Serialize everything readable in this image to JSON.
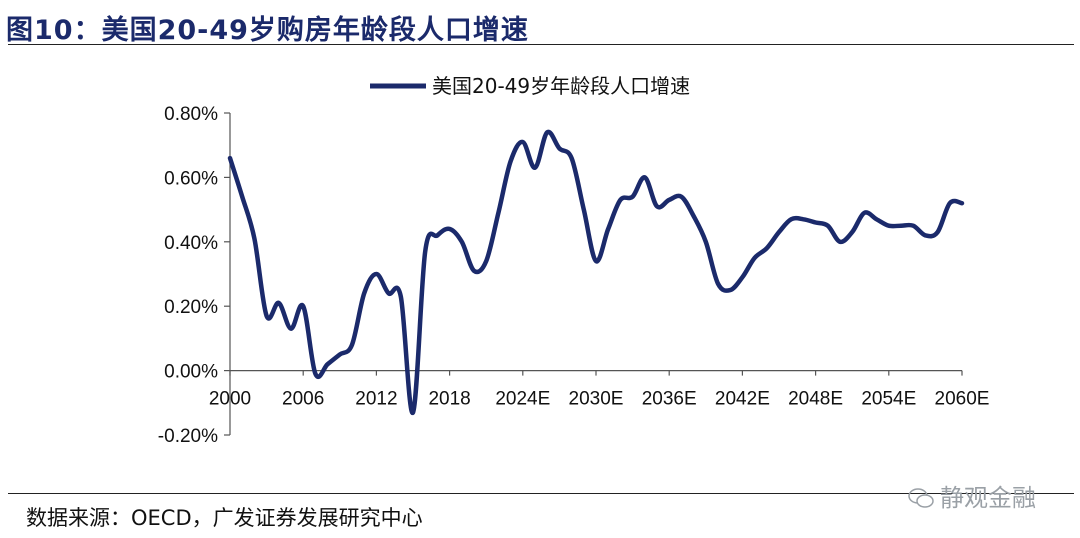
{
  "figure": {
    "title": "图10：美国20-49岁购房年龄段人口增速",
    "source": "数据来源：OECD，广发证券发展研究中心",
    "watermark": "静观金融"
  },
  "chart_data": {
    "type": "line",
    "title": "",
    "xlabel": "",
    "ylabel": "",
    "ylim": [
      -0.002,
      0.008
    ],
    "ytick_labels": [
      "-0.20%",
      "0.00%",
      "0.20%",
      "0.40%",
      "0.60%",
      "0.80%"
    ],
    "xtick_labels": [
      "2000",
      "2006",
      "2012",
      "2018",
      "2024E",
      "2030E",
      "2036E",
      "2042E",
      "2048E",
      "2054E",
      "2060E"
    ],
    "x_range": [
      2000,
      2060
    ],
    "grid": false,
    "legend_position": "top-center",
    "color": "#1b2a6b",
    "series": [
      {
        "name": "美国20-49岁年龄段人口增速",
        "x": [
          2000,
          2001,
          2002,
          2003,
          2004,
          2005,
          2006,
          2007,
          2008,
          2009,
          2010,
          2011,
          2012,
          2013,
          2014,
          2015,
          2016,
          2017,
          2018,
          2019,
          2020,
          2021,
          2022,
          2023,
          2024,
          2025,
          2026,
          2027,
          2028,
          2029,
          2030,
          2031,
          2032,
          2033,
          2034,
          2035,
          2036,
          2037,
          2038,
          2039,
          2040,
          2041,
          2042,
          2043,
          2044,
          2045,
          2046,
          2047,
          2048,
          2049,
          2050,
          2051,
          2052,
          2053,
          2054,
          2055,
          2056,
          2057,
          2058,
          2059,
          2060
        ],
        "values": [
          0.0066,
          0.0054,
          0.0041,
          0.0017,
          0.0021,
          0.0013,
          0.002,
          -0.0001,
          0.0002,
          0.0005,
          0.0008,
          0.0024,
          0.003,
          0.0024,
          0.0023,
          -0.0013,
          0.0037,
          0.0042,
          0.0044,
          0.004,
          0.0031,
          0.0034,
          0.0049,
          0.0065,
          0.0071,
          0.0063,
          0.0074,
          0.0069,
          0.0066,
          0.005,
          0.0034,
          0.0044,
          0.0053,
          0.0054,
          0.006,
          0.0051,
          0.0053,
          0.0054,
          0.0048,
          0.004,
          0.0027,
          0.0025,
          0.0029,
          0.0035,
          0.0038,
          0.0043,
          0.0047,
          0.0047,
          0.0046,
          0.0045,
          0.004,
          0.0043,
          0.0049,
          0.0047,
          0.0045,
          0.0045,
          0.0045,
          0.0042,
          0.0043,
          0.0052,
          0.0052
        ]
      }
    ]
  }
}
